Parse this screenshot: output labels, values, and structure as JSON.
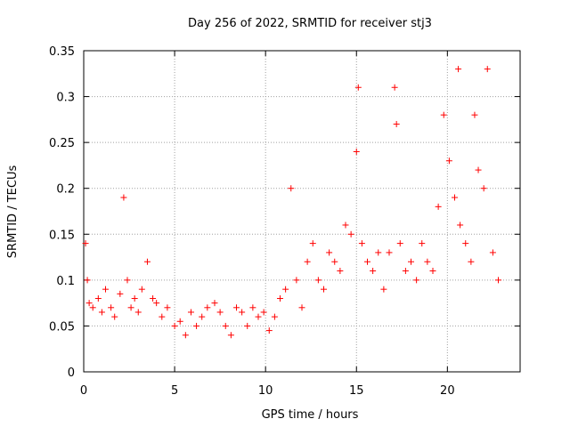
{
  "chart_data": {
    "type": "scatter",
    "title": "Day 256 of 2022, SRMTID for receiver stj3",
    "xlabel": "GPS time / hours",
    "ylabel": "SRMTID / TECUs",
    "xlim": [
      0,
      24
    ],
    "ylim": [
      0,
      0.35
    ],
    "x_ticks": [
      "0",
      "5",
      "10",
      "15",
      "20"
    ],
    "y_ticks": [
      "0",
      "0.05",
      "0.1",
      "0.15",
      "0.2",
      "0.25",
      "0.3",
      "0.35"
    ],
    "grid": true,
    "marker": "+",
    "series_color": "#ff0000",
    "series": [
      {
        "x": [
          0.1,
          0.2,
          0.3,
          0.5,
          0.8,
          1.0,
          1.2,
          1.5,
          1.7,
          2.0,
          2.2,
          2.4,
          2.6,
          2.8,
          3.0,
          3.2,
          3.5,
          3.8,
          4.0,
          4.3,
          4.6,
          5.0,
          5.3,
          5.6,
          5.9,
          6.2,
          6.5,
          6.8,
          7.2,
          7.5,
          7.8,
          8.1,
          8.4,
          8.7,
          9.0,
          9.3,
          9.6,
          9.9,
          10.2,
          10.5,
          10.8,
          11.1,
          11.4,
          11.7,
          12.0,
          12.3,
          12.6,
          12.9,
          13.2,
          13.5,
          13.8,
          14.1,
          14.4,
          14.7,
          15.0,
          15.1,
          15.3,
          15.6,
          15.9,
          16.2,
          16.5,
          16.8,
          17.1,
          17.2,
          17.4,
          17.7,
          18.0,
          18.3,
          18.6,
          18.9,
          19.2,
          19.5,
          19.8,
          20.1,
          20.4,
          20.6,
          20.7,
          21.0,
          21.3,
          21.5,
          21.7,
          22.0,
          22.2,
          22.5,
          22.8
        ],
        "y": [
          0.14,
          0.1,
          0.075,
          0.07,
          0.08,
          0.065,
          0.09,
          0.07,
          0.06,
          0.085,
          0.19,
          0.1,
          0.07,
          0.08,
          0.065,
          0.09,
          0.12,
          0.08,
          0.075,
          0.06,
          0.07,
          0.05,
          0.055,
          0.04,
          0.065,
          0.05,
          0.06,
          0.07,
          0.075,
          0.065,
          0.05,
          0.04,
          0.07,
          0.065,
          0.05,
          0.07,
          0.06,
          0.065,
          0.045,
          0.06,
          0.08,
          0.09,
          0.2,
          0.1,
          0.07,
          0.12,
          0.14,
          0.1,
          0.09,
          0.13,
          0.12,
          0.11,
          0.16,
          0.15,
          0.24,
          0.31,
          0.14,
          0.12,
          0.11,
          0.13,
          0.09,
          0.13,
          0.31,
          0.27,
          0.14,
          0.11,
          0.12,
          0.1,
          0.14,
          0.12,
          0.11,
          0.18,
          0.28,
          0.23,
          0.19,
          0.33,
          0.16,
          0.14,
          0.12,
          0.28,
          0.22,
          0.2,
          0.33,
          0.13,
          0.1
        ]
      }
    ]
  }
}
